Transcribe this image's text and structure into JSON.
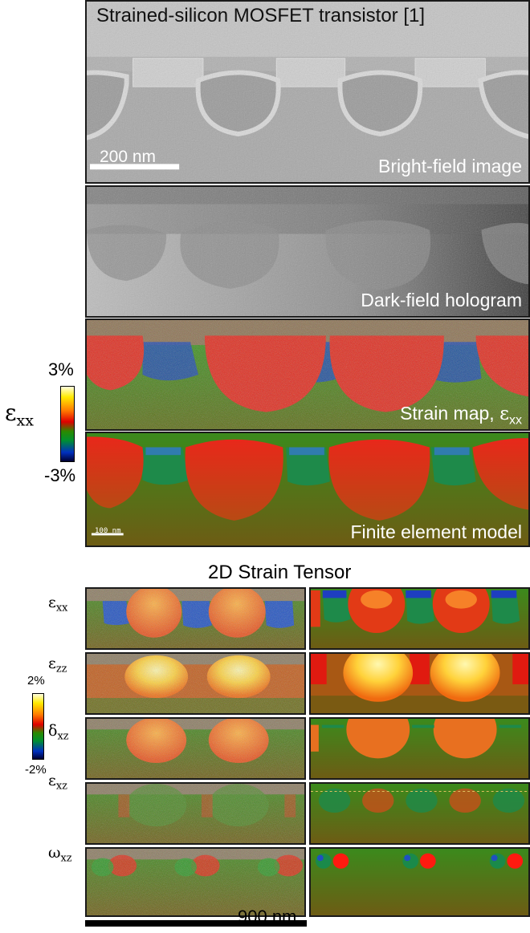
{
  "figure": {
    "title": "Strained-silicon MOSFET transistor [1]",
    "scalebar_top": "200 nm",
    "scalebar_fem": "100 nm",
    "panels": {
      "bright_field": "Bright-field image",
      "dark_field": "Dark-field hologram",
      "strain_map": "Strain map, ",
      "strain_map_sym": "ε",
      "strain_map_sub": "xx",
      "fem": "Finite element model"
    },
    "colorbar_main": {
      "symbol": "ε",
      "sub": "xx",
      "max": "3%",
      "min": "-3%"
    },
    "tensor": {
      "title": "2D Strain Tensor",
      "colorbar": {
        "max": "2%",
        "min": "-2%"
      },
      "rows": [
        {
          "symbol": "ε",
          "sub": "xx"
        },
        {
          "symbol": "ε",
          "sub": "zz"
        },
        {
          "symbol": "δ",
          "sub": "xz"
        },
        {
          "symbol": "ε",
          "sub": "xz"
        },
        {
          "symbol": "ω",
          "sub": "xz"
        }
      ],
      "scalebar": "900 nm"
    },
    "colors": {
      "strain_red": "#e8281a",
      "strain_green": "#3a8a1e",
      "strain_blue": "#1030a0",
      "strain_yellow": "#ffee60"
    }
  }
}
